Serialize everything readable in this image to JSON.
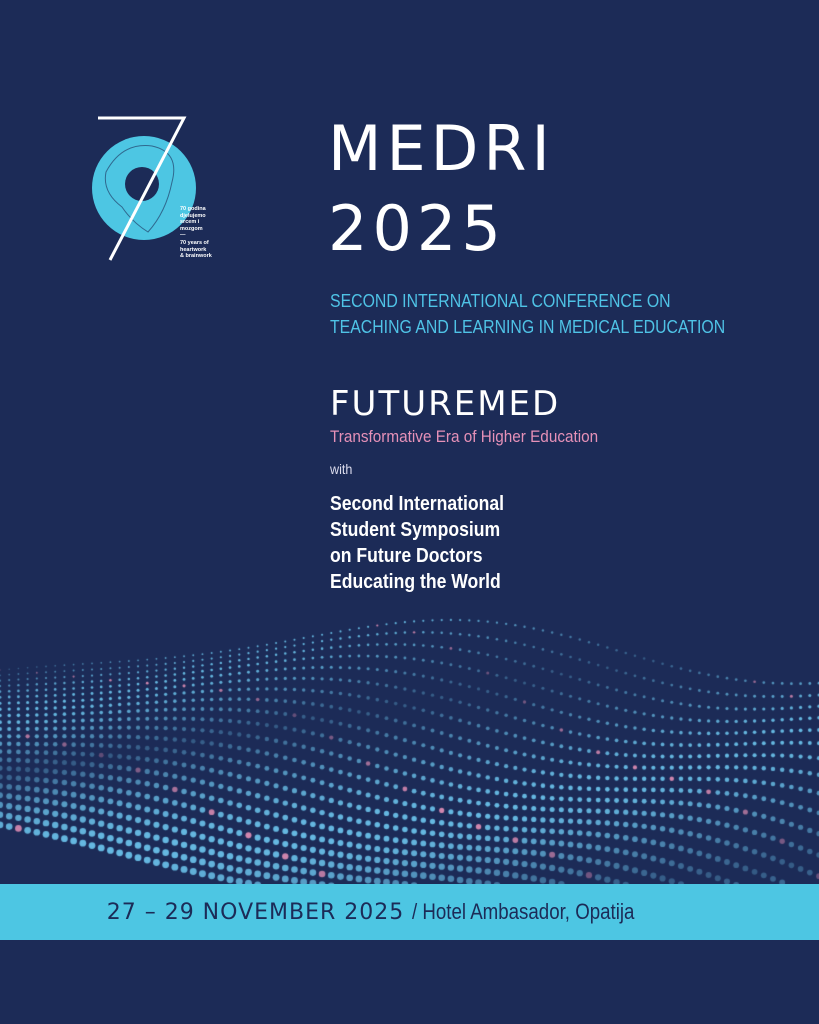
{
  "logo": {
    "text_hr": [
      "70 godina",
      "djelujemo",
      "srcem i",
      "mozgom",
      "—"
    ],
    "text_en": [
      "70 years of",
      "heartwork",
      "& brainwork"
    ]
  },
  "title": {
    "line1": "MEDRI",
    "line2": "2025"
  },
  "subtitle": {
    "line1": "SECOND INTERNATIONAL CONFERENCE ON",
    "line2": "TEACHING AND LEARNING IN MEDICAL EDUCATION"
  },
  "futuremed": {
    "name": "FUTUREMED",
    "tagline": "Transformative Era of Higher Education"
  },
  "with": "with",
  "symposium": [
    "Second International",
    "Student Symposium",
    "on Future Doctors",
    "Educating the World"
  ],
  "footer": {
    "dates": "27 – 29 NOVEMBER 2025",
    "venue": "/ Hotel Ambasador, Opatija"
  },
  "colors": {
    "background": "#1c2b57",
    "accent": "#4dc6e3",
    "pink": "#e691b8"
  }
}
